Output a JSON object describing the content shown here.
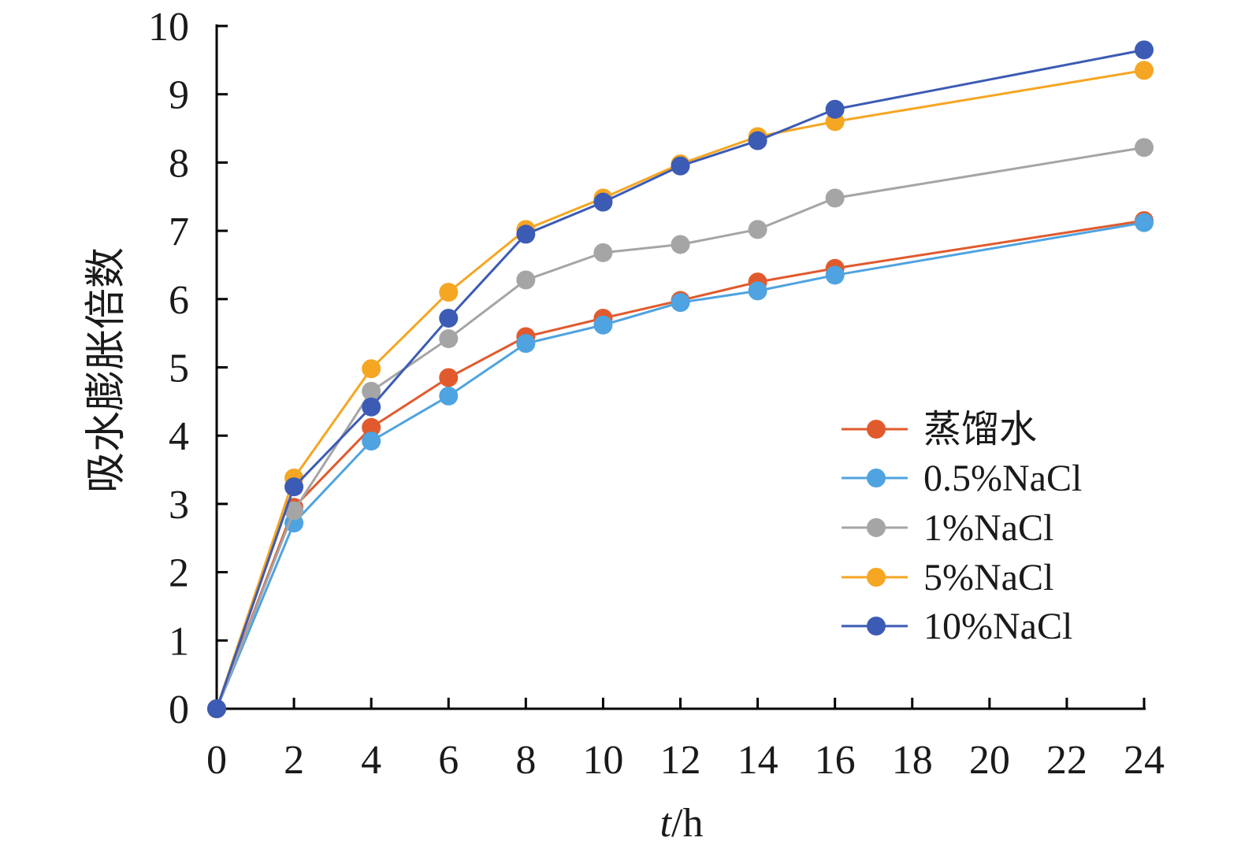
{
  "chart_data": {
    "type": "line",
    "x": [
      0,
      2,
      4,
      6,
      8,
      10,
      12,
      14,
      16,
      24
    ],
    "x_ticks": [
      0,
      2,
      4,
      6,
      8,
      10,
      12,
      14,
      16,
      18,
      20,
      22,
      24
    ],
    "y_ticks": [
      0,
      1,
      2,
      3,
      4,
      5,
      6,
      7,
      8,
      9,
      10
    ],
    "xlim": [
      0,
      24
    ],
    "ylim": [
      0,
      10
    ],
    "ylabel": "吸水膨胀倍数",
    "xlabel_italic": "t",
    "xlabel_unit": "/h",
    "grid": false,
    "legend_position": "right",
    "series": [
      {
        "name": "蒸馏水",
        "color": "#E15A2D",
        "values": [
          0,
          2.95,
          4.12,
          4.85,
          5.45,
          5.72,
          5.98,
          6.25,
          6.45,
          7.15
        ]
      },
      {
        "name": "0.5%NaCl",
        "color": "#4FA3E0",
        "values": [
          0,
          2.72,
          3.92,
          4.58,
          5.35,
          5.62,
          5.95,
          6.12,
          6.35,
          7.12
        ]
      },
      {
        "name": "1%NaCl",
        "color": "#A5A5A5",
        "values": [
          0,
          2.9,
          4.65,
          5.42,
          6.28,
          6.68,
          6.8,
          7.02,
          7.48,
          8.22
        ]
      },
      {
        "name": "5%NaCl",
        "color": "#F5A623",
        "values": [
          0,
          3.38,
          4.98,
          6.1,
          7.02,
          7.48,
          7.98,
          8.38,
          8.6,
          9.35
        ]
      },
      {
        "name": "10%NaCl",
        "color": "#3C5BB4",
        "values": [
          0,
          3.25,
          4.42,
          5.72,
          6.95,
          7.42,
          7.95,
          8.32,
          8.78,
          9.65
        ]
      }
    ]
  }
}
